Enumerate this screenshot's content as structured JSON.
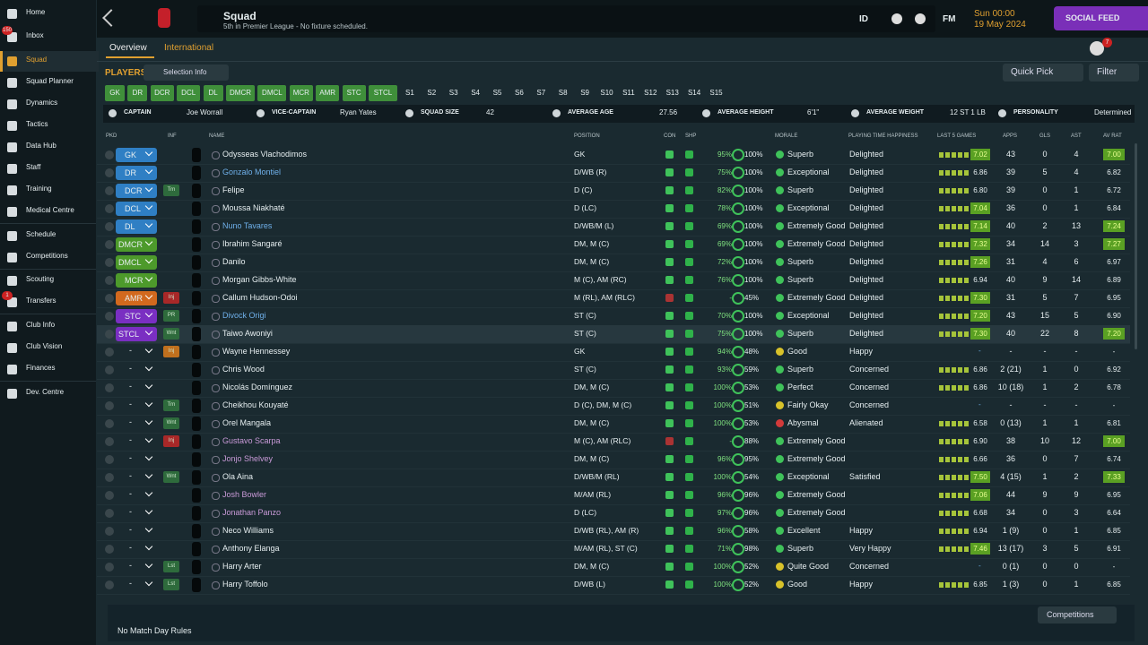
{
  "sidebar": {
    "items": [
      {
        "label": "Home"
      },
      {
        "label": "Inbox",
        "badge": "150"
      },
      {
        "label": "Squad"
      },
      {
        "label": "Squad Planner"
      },
      {
        "label": "Dynamics"
      },
      {
        "label": "Tactics"
      },
      {
        "label": "Data Hub"
      },
      {
        "label": "Staff"
      },
      {
        "label": "Training"
      },
      {
        "label": "Medical Centre"
      },
      {
        "label": "Schedule"
      },
      {
        "label": "Competitions"
      },
      {
        "label": "Scouting"
      },
      {
        "label": "Transfers",
        "badge": "1"
      },
      {
        "label": "Club Info"
      },
      {
        "label": "Club Vision"
      },
      {
        "label": "Finances"
      },
      {
        "label": "Dev. Centre"
      }
    ]
  },
  "header": {
    "title": "Squad",
    "subtitle": "5th in Premier League - No fixture scheduled.",
    "id_button": "ID",
    "fm_button": "FM",
    "time": "Sun 00:00",
    "date": "19 May 2024",
    "social_feed": "SOCIAL FEED",
    "notifications": "7"
  },
  "tabs": [
    "Overview",
    "International"
  ],
  "toolbar": {
    "players": "PLAYERS",
    "selection_info": "Selection Info",
    "quick_pick": "Quick Pick",
    "filter": "Filter"
  },
  "position_buttons": [
    {
      "label": "GK",
      "color": "#3f8f3a"
    },
    {
      "label": "DR",
      "color": "#3f8f3a"
    },
    {
      "label": "DCR",
      "color": "#3f8f3a"
    },
    {
      "label": "DCL",
      "color": "#3f8f3a"
    },
    {
      "label": "DL",
      "color": "#3f8f3a"
    },
    {
      "label": "DMCR",
      "color": "#3f8f3a"
    },
    {
      "label": "DMCL",
      "color": "#3f8f3a"
    },
    {
      "label": "MCR",
      "color": "#3f8f3a"
    },
    {
      "label": "AMR",
      "color": "#3f8f3a"
    },
    {
      "label": "STC",
      "color": "#3f8f3a"
    },
    {
      "label": "STCL",
      "color": "#3f8f3a"
    },
    {
      "label": "S1"
    },
    {
      "label": "S2"
    },
    {
      "label": "S3"
    },
    {
      "label": "S4"
    },
    {
      "label": "S5"
    },
    {
      "label": "S6"
    },
    {
      "label": "S7"
    },
    {
      "label": "S8"
    },
    {
      "label": "S9"
    },
    {
      "label": "S10"
    },
    {
      "label": "S11"
    },
    {
      "label": "S12"
    },
    {
      "label": "S13"
    },
    {
      "label": "S14"
    },
    {
      "label": "S15"
    }
  ],
  "info_bar": [
    {
      "label": "CAPTAIN",
      "value": "Joe Worrall"
    },
    {
      "label": "VICE-CAPTAIN",
      "value": "Ryan Yates"
    },
    {
      "label": "SQUAD SIZE",
      "value": "42"
    },
    {
      "label": "AVERAGE AGE",
      "value": "27.56"
    },
    {
      "label": "AVERAGE HEIGHT",
      "value": "6'1\""
    },
    {
      "label": "AVERAGE WEIGHT",
      "value": "12 ST 1 LB"
    },
    {
      "label": "PERSONALITY",
      "value": "Determined"
    }
  ],
  "table": {
    "columns": [
      "PKD",
      "INF",
      "NAME",
      "POSITION",
      "CON",
      "SHP",
      "MORALE",
      "PLAYING TIME HAPPINESS",
      "LAST 5 GAMES",
      "APPS",
      "GLS",
      "AST",
      "AV RAT"
    ],
    "rows": [
      {
        "pkd": "GK",
        "pkd_color": "#2f7fc4",
        "name": "Odysseas Vlachodimos",
        "position": "GK",
        "con": "95%",
        "shp": "100%",
        "morale": "Superb",
        "happiness": "Delighted",
        "last5": "7.02",
        "apps": "43",
        "gls": "0",
        "ast": "4",
        "avrat": "7.00"
      },
      {
        "pkd": "DR",
        "pkd_color": "#2f7fc4",
        "name": "Gonzalo Montiel",
        "name_color": "#6fb0ea",
        "position": "D/WB (R)",
        "con": "75%",
        "shp": "100%",
        "morale": "Exceptional",
        "happiness": "Delighted",
        "last5": "6.86",
        "apps": "39",
        "gls": "5",
        "ast": "4",
        "avrat": "6.82"
      },
      {
        "pkd": "DCR",
        "pkd_color": "#2f7fc4",
        "inf": "Trn",
        "inf_color": "#2e6b3c",
        "name": "Felipe",
        "position": "D (C)",
        "con": "82%",
        "shp": "100%",
        "morale": "Superb",
        "happiness": "Delighted",
        "last5": "6.80",
        "apps": "39",
        "gls": "0",
        "ast": "1",
        "avrat": "6.72"
      },
      {
        "pkd": "DCL",
        "pkd_color": "#2f7fc4",
        "name": "Moussa Niakhaté",
        "position": "D (LC)",
        "con": "78%",
        "shp": "100%",
        "morale": "Exceptional",
        "happiness": "Delighted",
        "last5": "7.04",
        "apps": "36",
        "gls": "0",
        "ast": "1",
        "avrat": "6.84"
      },
      {
        "pkd": "DL",
        "pkd_color": "#2f7fc4",
        "name": "Nuno Tavares",
        "name_color": "#6fb0ea",
        "position": "D/WB/M (L)",
        "con": "69%",
        "shp": "100%",
        "morale": "Extremely Good",
        "happiness": "Delighted",
        "last5": "7.14",
        "apps": "40",
        "gls": "2",
        "ast": "13",
        "avrat": "7.24"
      },
      {
        "pkd": "DMCR",
        "pkd_color": "#4d9a2b",
        "name": "Ibrahim Sangaré",
        "position": "DM, M (C)",
        "con": "69%",
        "shp": "100%",
        "morale": "Extremely Good",
        "happiness": "Delighted",
        "last5": "7.32",
        "apps": "34",
        "gls": "14",
        "ast": "3",
        "avrat": "7.27"
      },
      {
        "pkd": "DMCL",
        "pkd_color": "#4d9a2b",
        "name": "Danilo",
        "position": "DM, M (C)",
        "con": "72%",
        "shp": "100%",
        "morale": "Superb",
        "happiness": "Delighted",
        "last5": "7.26",
        "apps": "31",
        "gls": "4",
        "ast": "6",
        "avrat": "6.97"
      },
      {
        "pkd": "MCR",
        "pkd_color": "#4d9a2b",
        "name": "Morgan Gibbs-White",
        "position": "M (C), AM (RC)",
        "con": "76%",
        "shp": "100%",
        "morale": "Superb",
        "happiness": "Delighted",
        "last5": "6.94",
        "apps": "40",
        "gls": "9",
        "ast": "14",
        "avrat": "6.89"
      },
      {
        "pkd": "AMR",
        "pkd_color": "#d2691e",
        "inf": "Inj",
        "inf_color": "#a82828",
        "name": "Callum Hudson-Odoi",
        "position": "M (RL), AM (RLC)",
        "con": "-",
        "shp": "45%",
        "morale": "Extremely Good",
        "happiness": "Delighted",
        "last5": "7.30",
        "apps": "31",
        "gls": "5",
        "ast": "7",
        "avrat": "6.95"
      },
      {
        "pkd": "STC",
        "pkd_color": "#7a2fc2",
        "inf": "PR",
        "inf_color": "#2e6b3c",
        "name": "Divock Origi",
        "name_color": "#6fb0ea",
        "position": "ST (C)",
        "con": "70%",
        "shp": "100%",
        "morale": "Exceptional",
        "happiness": "Delighted",
        "last5": "7.20",
        "apps": "43",
        "gls": "15",
        "ast": "5",
        "avrat": "6.90"
      },
      {
        "pkd": "STCL",
        "pkd_color": "#7a2fc2",
        "inf": "Wnt",
        "inf_color": "#2e6b3c",
        "name": "Taiwo Awoniyi",
        "position": "ST (C)",
        "con": "75%",
        "shp": "100%",
        "morale": "Superb",
        "happiness": "Delighted",
        "last5": "7.30",
        "apps": "40",
        "gls": "22",
        "ast": "8",
        "avrat": "7.20"
      },
      {
        "pkd": "-",
        "inf": "Inj",
        "inf_color": "#c0701e",
        "name": "Wayne Hennessey",
        "position": "GK",
        "con": "94%",
        "shp": "48%",
        "morale": "Good",
        "morale_color": "#d8c22a",
        "happiness": "Happy",
        "last5": "-",
        "apps": "-",
        "gls": "-",
        "ast": "-",
        "avrat": "-"
      },
      {
        "pkd": "-",
        "name": "Chris Wood",
        "position": "ST (C)",
        "con": "93%",
        "shp": "59%",
        "morale": "Superb",
        "happiness": "Concerned",
        "last5": "6.86",
        "apps": "2 (21)",
        "gls": "1",
        "ast": "0",
        "avrat": "6.92"
      },
      {
        "pkd": "-",
        "name": "Nicolás Domínguez",
        "position": "DM, M (C)",
        "con": "100%",
        "shp": "53%",
        "morale": "Perfect",
        "happiness": "Concerned",
        "last5": "6.86",
        "apps": "10 (18)",
        "gls": "1",
        "ast": "2",
        "avrat": "6.78"
      },
      {
        "pkd": "-",
        "inf": "Trn",
        "inf_color": "#2e6b3c",
        "name": "Cheikhou Kouyaté",
        "position": "D (C), DM, M (C)",
        "con": "100%",
        "shp": "51%",
        "morale": "Fairly Okay",
        "morale_color": "#d8c22a",
        "happiness": "Concerned",
        "last5": "-",
        "apps": "-",
        "gls": "-",
        "ast": "-",
        "avrat": "-"
      },
      {
        "pkd": "-",
        "inf": "Wnt",
        "inf_color": "#2e6b3c",
        "name": "Orel Mangala",
        "position": "DM, M (C)",
        "con": "100%",
        "shp": "53%",
        "morale": "Abysmal",
        "morale_color": "#d23a3a",
        "happiness": "Alienated",
        "last5": "6.58",
        "apps": "0 (13)",
        "gls": "1",
        "ast": "1",
        "avrat": "6.81"
      },
      {
        "pkd": "-",
        "inf": "Inj",
        "inf_color": "#a82828",
        "name": "Gustavo Scarpa",
        "name_color": "#c99ad8",
        "position": "M (C), AM (RLC)",
        "con": "-",
        "shp": "88%",
        "morale": "Extremely Good",
        "last5": "6.90",
        "apps": "38",
        "gls": "10",
        "ast": "12",
        "avrat": "7.00"
      },
      {
        "pkd": "-",
        "name": "Jonjo Shelvey",
        "name_color": "#c99ad8",
        "position": "DM, M (C)",
        "con": "96%",
        "shp": "95%",
        "morale": "Extremely Good",
        "last5": "6.66",
        "apps": "36",
        "gls": "0",
        "ast": "7",
        "avrat": "6.74"
      },
      {
        "pkd": "-",
        "inf": "Wnt",
        "inf_color": "#2e6b3c",
        "name": "Ola Aina",
        "position": "D/WB/M (RL)",
        "con": "100%",
        "shp": "54%",
        "morale": "Exceptional",
        "happiness": "Satisfied",
        "last5": "7.50",
        "apps": "4 (15)",
        "gls": "1",
        "ast": "2",
        "avrat": "7.33"
      },
      {
        "pkd": "-",
        "name": "Josh Bowler",
        "name_color": "#c99ad8",
        "position": "M/AM (RL)",
        "con": "96%",
        "shp": "96%",
        "morale": "Extremely Good",
        "last5": "7.06",
        "apps": "44",
        "gls": "9",
        "ast": "9",
        "avrat": "6.95"
      },
      {
        "pkd": "-",
        "name": "Jonathan Panzo",
        "name_color": "#c99ad8",
        "position": "D (LC)",
        "con": "97%",
        "shp": "96%",
        "morale": "Extremely Good",
        "last5": "6.68",
        "apps": "34",
        "gls": "0",
        "ast": "3",
        "avrat": "6.64"
      },
      {
        "pkd": "-",
        "name": "Neco Williams",
        "position": "D/WB (RL), AM (R)",
        "con": "96%",
        "shp": "58%",
        "morale": "Excellent",
        "happiness": "Happy",
        "last5": "6.94",
        "apps": "1 (9)",
        "gls": "0",
        "ast": "1",
        "avrat": "6.85"
      },
      {
        "pkd": "-",
        "name": "Anthony Elanga",
        "position": "M/AM (RL), ST (C)",
        "con": "71%",
        "shp": "98%",
        "morale": "Superb",
        "happiness": "Very Happy",
        "last5": "7.46",
        "apps": "13 (17)",
        "gls": "3",
        "ast": "5",
        "avrat": "6.91"
      },
      {
        "pkd": "-",
        "inf": "Lst",
        "inf_color": "#2e6b3c",
        "name": "Harry Arter",
        "position": "DM, M (C)",
        "con": "100%",
        "shp": "52%",
        "morale": "Quite Good",
        "morale_color": "#d8c22a",
        "happiness": "Concerned",
        "last5": "-",
        "apps": "0 (1)",
        "gls": "0",
        "ast": "0",
        "avrat": "-"
      },
      {
        "pkd": "-",
        "inf": "Lst",
        "inf_color": "#2e6b3c",
        "name": "Harry Toffolo",
        "position": "D/WB (L)",
        "con": "100%",
        "shp": "52%",
        "morale": "Good",
        "morale_color": "#d8c22a",
        "happiness": "Happy",
        "last5": "6.85",
        "apps": "1 (3)",
        "gls": "0",
        "ast": "1",
        "avrat": "6.85"
      }
    ]
  },
  "footer": {
    "rules": "No Match Day Rules",
    "competitions": "Competitions"
  }
}
